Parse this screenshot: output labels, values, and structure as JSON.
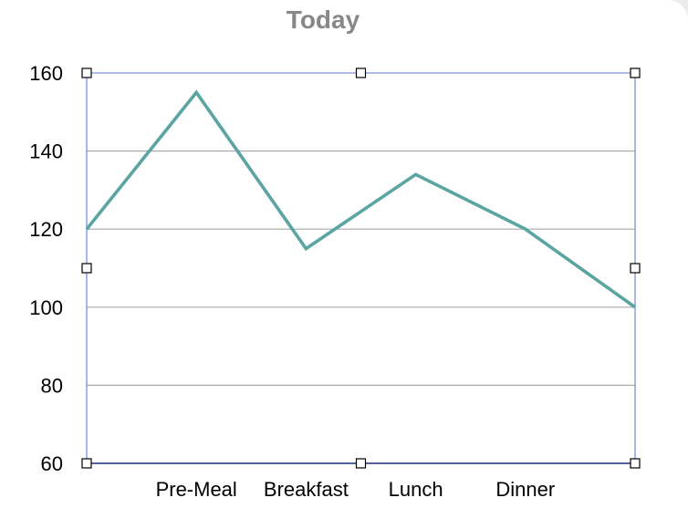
{
  "chart_data": {
    "type": "line",
    "title": "Today",
    "categories": [
      "Pre-Meal",
      "Breakfast",
      "Lunch",
      "Dinner"
    ],
    "x": [
      0,
      1,
      2,
      3,
      4,
      5
    ],
    "series": [
      {
        "values": [
          120,
          155,
          115,
          134,
          120,
          100
        ]
      }
    ],
    "ylim": [
      60,
      160
    ],
    "yticks": [
      60,
      80,
      100,
      120,
      140,
      160
    ],
    "grid": true,
    "line_color": "#5aa5a1",
    "selection_color": "#7b8fe0"
  }
}
